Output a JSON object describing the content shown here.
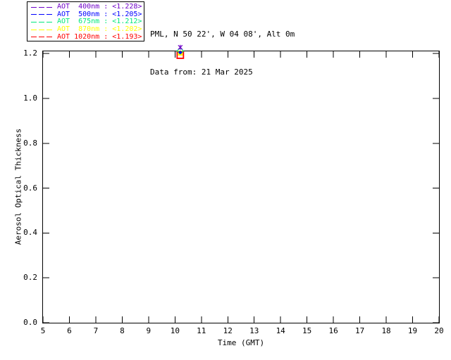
{
  "header": {
    "location_line": "PML, N 50 22', W 04 08', Alt 0m",
    "date_line": "Data from: 21 Mar 2025"
  },
  "legend": {
    "entries": [
      {
        "label": "AOT  400nm : <1.228>",
        "color": "#6e00c8",
        "wavelength_nm": 400,
        "mean_aot": 1.228
      },
      {
        "label": "AOT  500nm : <1.205>",
        "color": "#0000ff",
        "wavelength_nm": 500,
        "mean_aot": 1.205
      },
      {
        "label": "AOT  675nm : <1.212>",
        "color": "#00e87c",
        "wavelength_nm": 675,
        "mean_aot": 1.212
      },
      {
        "label": "AOT  870nm : <1.202>",
        "color": "#ffff00",
        "wavelength_nm": 870,
        "mean_aot": 1.202
      },
      {
        "label": "AOT 1020nm : <1.193>",
        "color": "#ff0000",
        "wavelength_nm": 1020,
        "mean_aot": 1.193
      }
    ]
  },
  "chart_data": {
    "type": "scatter",
    "title": "",
    "xlabel": "Time (GMT)",
    "ylabel": "Aerosol Optical Thickness",
    "xlim": [
      5,
      20
    ],
    "ylim": [
      0.0,
      1.2
    ],
    "x_tick_labels": [
      "5",
      "6",
      "7",
      "8",
      "9",
      "10",
      "11",
      "12",
      "13",
      "14",
      "15",
      "16",
      "17",
      "18",
      "19",
      "20"
    ],
    "y_tick_labels": [
      "0.0",
      "0.2",
      "0.4",
      "0.6",
      "0.8",
      "1.0",
      "1.2"
    ],
    "grid": false,
    "legend_position": "top-left-outside",
    "axis_color": "#000000",
    "background_color": "#ffffff",
    "series": [
      {
        "name": "AOT 870nm",
        "color": "#ffff00",
        "marker": "filled-square",
        "x": [
          10.2
        ],
        "y": [
          1.202
        ]
      },
      {
        "name": "AOT 1020nm",
        "color": "#ff0000",
        "marker": "open-square",
        "x": [
          10.2
        ],
        "y": [
          1.193
        ]
      },
      {
        "name": "AOT 675nm",
        "color": "#00e87c",
        "marker": "open-diamond",
        "x": [
          10.2
        ],
        "y": [
          1.212
        ]
      },
      {
        "name": "AOT 500nm",
        "color": "#0000ff",
        "marker": "filled-circle",
        "x": [
          10.2
        ],
        "y": [
          1.205
        ]
      },
      {
        "name": "AOT 400nm",
        "color": "#6e00c8",
        "marker": "asterisk",
        "x": [
          10.2
        ],
        "y": [
          1.228
        ]
      }
    ]
  }
}
